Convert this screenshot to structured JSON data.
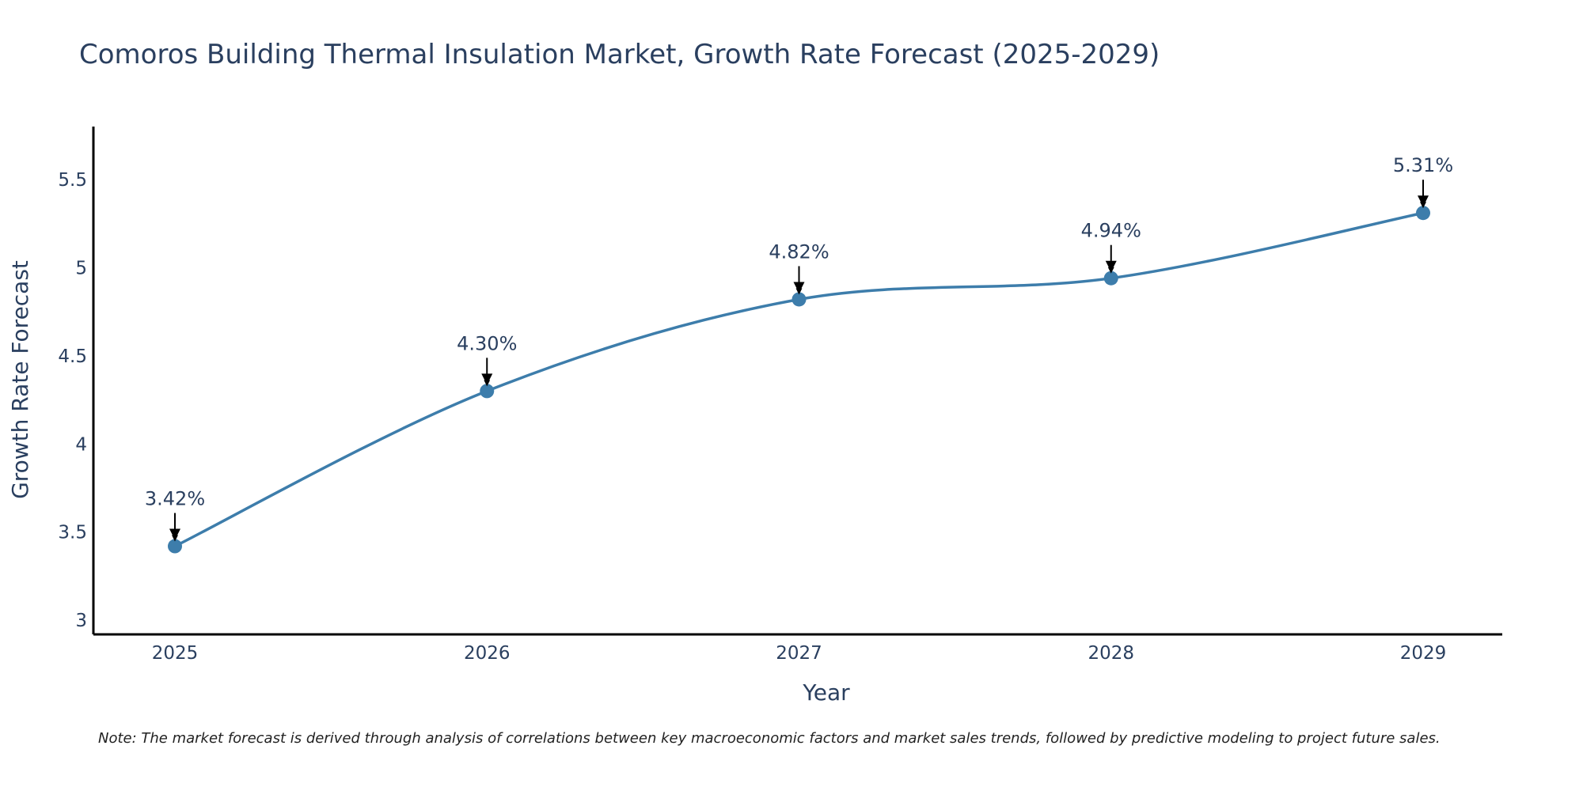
{
  "chart_data": {
    "type": "line",
    "title": "Comoros Building Thermal Insulation Market, Growth Rate Forecast (2025-2029)",
    "xlabel": "Year",
    "ylabel": "Growth Rate Forecast",
    "categories": [
      "2025",
      "2026",
      "2027",
      "2028",
      "2029"
    ],
    "series": [
      {
        "name": "Growth Rate Forecast",
        "values": [
          3.42,
          4.3,
          4.82,
          4.94,
          5.31
        ],
        "labels": [
          "3.42%",
          "4.30%",
          "4.82%",
          "4.94%",
          "5.31%"
        ],
        "color": "#3d7dab"
      }
    ],
    "yticks": [
      3,
      3.5,
      4,
      4.5,
      5,
      5.5
    ],
    "ytick_labels": [
      "3",
      "3.5",
      "4",
      "4.5",
      "5",
      "5.5"
    ],
    "ylim": [
      2.92,
      5.8
    ],
    "grid": false,
    "line_shape": "spline",
    "note": "Note: The market forecast is derived through analysis of correlations between key macroeconomic factors and market sales trends, followed by predictive modeling to project future sales."
  },
  "colors": {
    "line": "#3d7dab",
    "text": "#2a3f5f",
    "axis": "#000000",
    "arrow": "#000000"
  }
}
